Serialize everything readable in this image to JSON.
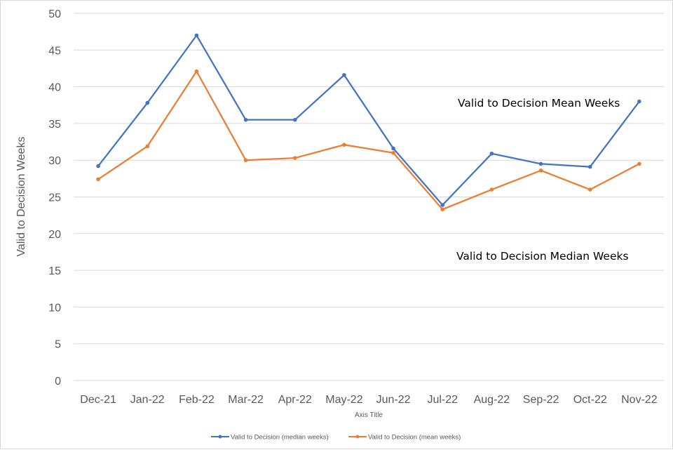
{
  "chart_data": {
    "type": "line",
    "categories": [
      "Dec-21",
      "Jan-22",
      "Feb-22",
      "Mar-22",
      "Apr-22",
      "May-22",
      "Jun-22",
      "Jul-22",
      "Aug-22",
      "Sep-22",
      "Oct-22",
      "Nov-22"
    ],
    "series": [
      {
        "name": "Valid to Decision (median weeks)",
        "color": "#4472C4",
        "values": [
          29.2,
          37.8,
          47.0,
          35.5,
          35.5,
          41.6,
          31.6,
          23.9,
          30.9,
          29.5,
          29.1,
          38.0
        ]
      },
      {
        "name": "Valid to Decision (mean weeks)",
        "color": "#ED7D31",
        "values": [
          27.4,
          31.9,
          42.1,
          30.0,
          30.3,
          32.1,
          31.0,
          23.3,
          26.0,
          28.6,
          26.0,
          29.5
        ]
      }
    ],
    "xlabel": "Axis Title",
    "ylabel": "Valid to Decision Weeks",
    "ylim": [
      0,
      50
    ],
    "yticks": [
      0,
      5,
      10,
      15,
      20,
      25,
      30,
      35,
      40,
      45,
      50
    ],
    "grid": "horizontal",
    "legend_position": "bottom",
    "annotations": [
      "Valid to Decision Mean Weeks",
      "Valid to Decision Median Weeks"
    ]
  }
}
